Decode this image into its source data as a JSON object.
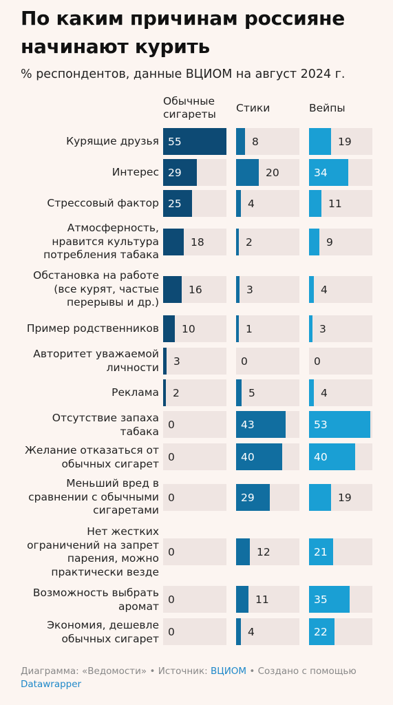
{
  "title": "По каким причинам россияне начинают курить",
  "subtitle": "% респондентов, данные ВЦИОМ на август 2024 г.",
  "footer": {
    "prefix": "Диаграмма: «Ведомости» • Источник: ",
    "source_link": "ВЦИОМ",
    "middle": " • Создано с помощью ",
    "tool_link": "Datawrapper"
  },
  "colors": {
    "series_1": "#0d4a74",
    "series_2": "#116ea0",
    "series_3": "#1a9fd4",
    "cell_background": "#efe5e2",
    "page_background": "#fcf5f1"
  },
  "chart_data": {
    "type": "bar",
    "title": "По каким причинам россияне начинают курить",
    "subtitle": "% респондентов, данные ВЦИОМ на август 2024 г.",
    "xlim": [
      0,
      55
    ],
    "categories": [
      "Курящие друзья",
      "Интерес",
      "Стрессовый фактор",
      "Атмосферность, нравится культура потребления табака",
      "Обстановка на работе (все курят, частые перерывы и др.)",
      "Пример родственников",
      "Авторитет уважаемой личности",
      "Реклама",
      "Отсутствие запаха табака",
      "Желание отказаться от обычных сигарет",
      "Меньший вред в сравнении с обычными сигаретами",
      "Нет жестких ограничений на запрет парения, можно практически везде",
      "Возможность выбрать аромат",
      "Экономия, дешевле обычных сигарет"
    ],
    "series": [
      {
        "name": "Обычные сигареты",
        "values": [
          55,
          29,
          25,
          18,
          16,
          10,
          3,
          2,
          0,
          0,
          0,
          0,
          0,
          0
        ]
      },
      {
        "name": "Стики",
        "values": [
          8,
          20,
          4,
          2,
          3,
          1,
          0,
          5,
          43,
          40,
          29,
          12,
          11,
          4
        ]
      },
      {
        "name": "Вейпы",
        "values": [
          19,
          34,
          11,
          9,
          4,
          3,
          0,
          4,
          53,
          40,
          19,
          21,
          35,
          22
        ]
      }
    ]
  }
}
